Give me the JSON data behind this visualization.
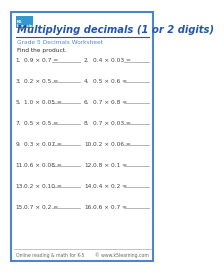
{
  "title": "Multiplying decimals (1 or 2 digits)",
  "subtitle": "Grade 5 Decimals Worksheet",
  "instruction": "Find the product.",
  "bg_color": "#ffffff",
  "border_color": "#4a86c8",
  "title_color": "#2255aa",
  "subtitle_color": "#5588cc",
  "instruction_color": "#333333",
  "problem_color": "#444444",
  "footer_left": "Online reading & math for K-5",
  "footer_right": "© www.k5learning.com",
  "problems": [
    [
      "0.9 × 0.7 =",
      "0.4 × 0.03 ="
    ],
    [
      "0.2 × 0.5 =",
      "0.5 × 0.6 ="
    ],
    [
      "1.0 × 0.05 =",
      "0.7 × 0.8 ="
    ],
    [
      "0.5 × 0.5 =",
      "0.7 × 0.03 ="
    ],
    [
      "0.3 × 0.07 =",
      "0.2 × 0.06 ="
    ],
    [
      "0.6 × 0.08 =",
      "0.8 × 0.1 ="
    ],
    [
      "0.2 × 0.10 =",
      "0.4 × 0.2 ="
    ],
    [
      "0.7 × 0.2 =",
      "0.6 × 0.7 ="
    ]
  ],
  "problem_numbers_left": [
    "1.",
    "3.",
    "5.",
    "7.",
    "9.",
    "11.",
    "13.",
    "15."
  ],
  "problem_numbers_right": [
    "2.",
    "4.",
    "6.",
    "8.",
    "10.",
    "12.",
    "14.",
    "16."
  ]
}
